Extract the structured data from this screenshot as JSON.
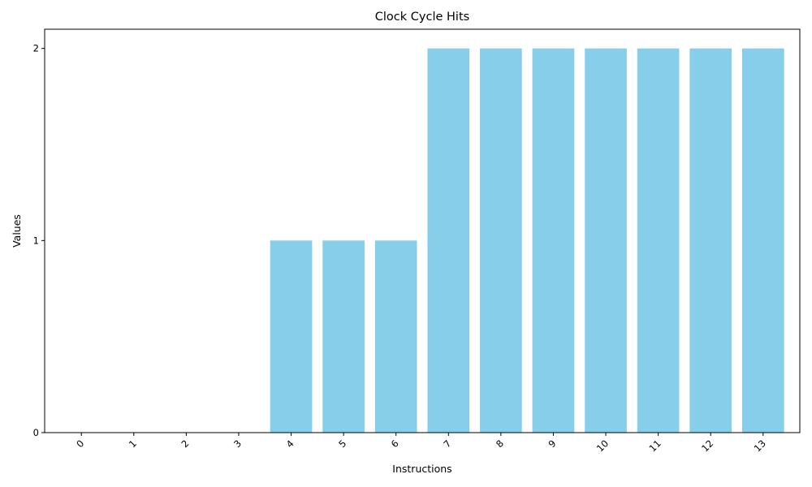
{
  "chart_data": {
    "type": "bar",
    "title": "Clock Cycle Hits",
    "xlabel": "Instructions",
    "ylabel": "Values",
    "categories": [
      "0",
      "1",
      "2",
      "3",
      "4",
      "5",
      "6",
      "7",
      "8",
      "9",
      "10",
      "11",
      "12",
      "13"
    ],
    "values": [
      0,
      0,
      0,
      0,
      1,
      1,
      1,
      2,
      2,
      2,
      2,
      2,
      2,
      2
    ],
    "yticks": [
      "0",
      "1",
      "2"
    ],
    "ylim": [
      0,
      2.1
    ],
    "bar_color": "#87ceeb",
    "grid": false,
    "legend": "none"
  }
}
